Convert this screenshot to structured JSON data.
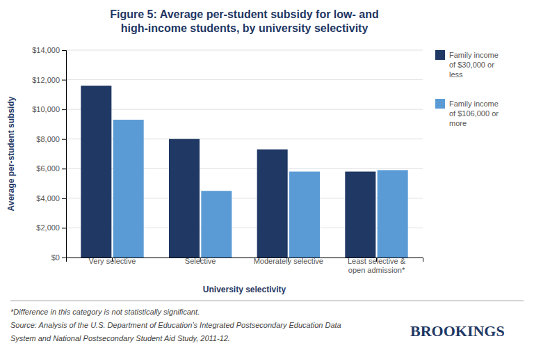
{
  "chart_data": {
    "type": "bar",
    "title": "Figure 5: Average per-student subsidy for low- and\nhigh-income students, by university selectivity",
    "categories": [
      "Very selective",
      "Selective",
      "Moderately selective",
      "Least selective &\nopen admission*"
    ],
    "series": [
      {
        "name": "Family income\nof $30,000 or\nless",
        "color": "#1f3864",
        "values": [
          11600,
          8000,
          7300,
          5800
        ]
      },
      {
        "name": "Family income\nof $106,000 or\nmore",
        "color": "#5b9bd5",
        "values": [
          9300,
          4500,
          5800,
          5900
        ]
      }
    ],
    "xlabel": "University selectivity",
    "ylabel": "Average per-student subsidy",
    "ylim": [
      0,
      14000
    ],
    "yticks": [
      {
        "value": 0,
        "label": "$0"
      },
      {
        "value": 2000,
        "label": "$2,000"
      },
      {
        "value": 4000,
        "label": "$4,000"
      },
      {
        "value": 6000,
        "label": "$6,000"
      },
      {
        "value": 8000,
        "label": "$8,000"
      },
      {
        "value": 10000,
        "label": "$10,000"
      },
      {
        "value": 12000,
        "label": "$12,000"
      },
      {
        "value": 14000,
        "label": "$14,000"
      }
    ],
    "grid": true,
    "legend": "right",
    "annotations": [
      "*Difference in this category is not statistically significant.",
      "Source: Analysis of the U.S. Department of Education’s Integrated Postsecondary Education Data",
      "System and National Postsecondary Student Aid Study, 2011-12."
    ],
    "credit": "BROOKINGS"
  }
}
